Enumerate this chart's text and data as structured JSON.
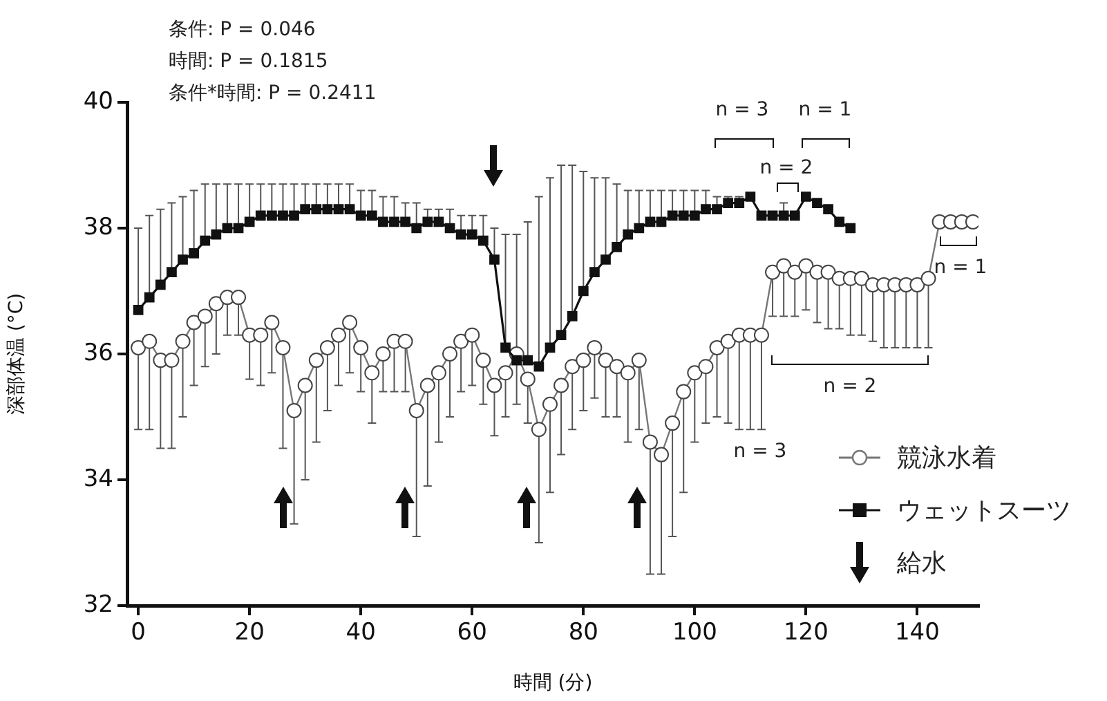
{
  "chart_data": {
    "type": "line",
    "xlabel": "時間 (分)",
    "ylabel": "深部体温 (°C)",
    "x": [
      0,
      2,
      4,
      6,
      8,
      10,
      12,
      14,
      16,
      18,
      20,
      22,
      24,
      26,
      28,
      30,
      32,
      34,
      36,
      38,
      40,
      42,
      44,
      46,
      48,
      50,
      52,
      54,
      56,
      58,
      60,
      62,
      64,
      66,
      68,
      70,
      72,
      74,
      76,
      78,
      80,
      82,
      84,
      86,
      88,
      90,
      92,
      94,
      96,
      98,
      100,
      102,
      104,
      106,
      108,
      110,
      112,
      114,
      116,
      118,
      120,
      122,
      124,
      126,
      128,
      130,
      132,
      134,
      136,
      138,
      140,
      142,
      144,
      146,
      148,
      150
    ],
    "xlim": [
      -2,
      151
    ],
    "xticks": [
      0,
      20,
      40,
      60,
      80,
      100,
      120,
      140
    ],
    "ylim": [
      32,
      40
    ],
    "yticks": [
      32,
      34,
      36,
      38,
      40
    ],
    "grid": false,
    "legend": "bottom right",
    "series": [
      {
        "name": "競泳水着",
        "color": "#777777",
        "marker": "circle",
        "values": [
          36.1,
          36.2,
          35.9,
          35.9,
          36.2,
          36.5,
          36.6,
          36.8,
          36.9,
          36.9,
          36.3,
          36.3,
          36.5,
          36.1,
          35.1,
          35.5,
          35.9,
          36.1,
          36.3,
          36.5,
          36.1,
          35.7,
          36.0,
          36.2,
          36.2,
          35.1,
          35.5,
          35.7,
          36.0,
          36.2,
          36.3,
          35.9,
          35.5,
          35.7,
          36.0,
          35.6,
          34.8,
          35.2,
          35.5,
          35.8,
          35.9,
          36.1,
          35.9,
          35.8,
          35.7,
          35.9,
          34.6,
          34.4,
          34.9,
          35.4,
          35.7,
          35.8,
          36.1,
          36.2,
          36.3,
          36.3,
          36.3,
          37.3,
          37.4,
          37.3,
          37.4,
          37.3,
          37.3,
          37.2,
          37.2,
          37.2,
          37.1,
          37.1,
          37.1,
          37.1,
          37.1,
          37.2,
          38.1,
          38.1,
          38.1,
          38.1
        ],
        "errors": [
          [
            34.8,
            36.1
          ],
          [
            34.8,
            36.2
          ],
          [
            34.5,
            35.9
          ],
          [
            34.5,
            35.9
          ],
          [
            35.0,
            36.2
          ],
          [
            35.5,
            36.5
          ],
          [
            35.8,
            36.6
          ],
          [
            36.0,
            36.8
          ],
          [
            36.3,
            36.9
          ],
          [
            36.3,
            36.9
          ],
          [
            35.6,
            36.3
          ],
          [
            35.5,
            36.3
          ],
          [
            35.7,
            36.5
          ],
          [
            34.5,
            36.1
          ],
          [
            33.3,
            35.1
          ],
          [
            34.0,
            35.5
          ],
          [
            34.6,
            35.9
          ],
          [
            35.1,
            36.1
          ],
          [
            35.5,
            36.3
          ],
          [
            35.7,
            36.5
          ],
          [
            35.4,
            36.1
          ],
          [
            34.9,
            35.7
          ],
          [
            35.4,
            36.0
          ],
          [
            35.4,
            36.2
          ],
          [
            35.4,
            36.2
          ],
          [
            33.1,
            35.1
          ],
          [
            33.9,
            35.5
          ],
          [
            34.6,
            35.7
          ],
          [
            35.0,
            36.0
          ],
          [
            35.4,
            36.2
          ],
          [
            35.5,
            36.3
          ],
          [
            35.2,
            35.9
          ],
          [
            34.7,
            35.5
          ],
          [
            35.0,
            35.7
          ],
          [
            35.2,
            36.0
          ],
          [
            34.9,
            35.6
          ],
          [
            33.0,
            34.8
          ],
          [
            33.8,
            35.2
          ],
          [
            34.4,
            35.5
          ],
          [
            34.8,
            35.8
          ],
          [
            35.1,
            35.9
          ],
          [
            35.3,
            36.1
          ],
          [
            35.0,
            35.9
          ],
          [
            35.0,
            35.8
          ],
          [
            34.6,
            35.7
          ],
          [
            34.8,
            35.9
          ],
          [
            32.5,
            34.6
          ],
          [
            32.5,
            34.4
          ],
          [
            33.1,
            34.9
          ],
          [
            33.8,
            35.4
          ],
          [
            34.6,
            35.7
          ],
          [
            34.9,
            35.8
          ],
          [
            35.0,
            36.1
          ],
          [
            34.9,
            36.2
          ],
          [
            34.8,
            36.3
          ],
          [
            34.8,
            36.3
          ],
          [
            34.8,
            36.3
          ],
          [
            36.6,
            37.3
          ],
          [
            36.6,
            37.4
          ],
          [
            36.6,
            37.3
          ],
          [
            36.7,
            37.4
          ],
          [
            36.5,
            37.3
          ],
          [
            36.4,
            37.3
          ],
          [
            36.4,
            37.2
          ],
          [
            36.3,
            37.2
          ],
          [
            36.3,
            37.2
          ],
          [
            36.2,
            37.1
          ],
          [
            36.1,
            37.1
          ],
          [
            36.1,
            37.1
          ],
          [
            36.1,
            37.1
          ],
          [
            36.1,
            37.1
          ],
          [
            36.1,
            37.2
          ],
          null,
          null,
          null,
          null
        ]
      },
      {
        "name": "ウェットスーツ",
        "color": "#111111",
        "marker": "square",
        "values": [
          36.7,
          36.9,
          37.1,
          37.3,
          37.5,
          37.6,
          37.8,
          37.9,
          38.0,
          38.0,
          38.1,
          38.2,
          38.2,
          38.2,
          38.2,
          38.3,
          38.3,
          38.3,
          38.3,
          38.3,
          38.2,
          38.2,
          38.1,
          38.1,
          38.1,
          38.0,
          38.1,
          38.1,
          38.0,
          37.9,
          37.9,
          37.8,
          37.5,
          36.1,
          35.9,
          35.9,
          35.8,
          36.1,
          36.3,
          36.6,
          37.0,
          37.3,
          37.5,
          37.7,
          37.9,
          38.0,
          38.1,
          38.1,
          38.2,
          38.2,
          38.2,
          38.3,
          38.3,
          38.4,
          38.4,
          38.5,
          38.2,
          38.2,
          38.2,
          38.2,
          38.5,
          38.4,
          38.3,
          38.1,
          38.0,
          null,
          null,
          null,
          null,
          null,
          null,
          null,
          null,
          null,
          null,
          null
        ],
        "errors": [
          [
            36.7,
            38.0
          ],
          [
            36.9,
            38.2
          ],
          [
            37.1,
            38.3
          ],
          [
            37.3,
            38.4
          ],
          [
            37.5,
            38.5
          ],
          [
            37.6,
            38.6
          ],
          [
            37.8,
            38.7
          ],
          [
            37.9,
            38.7
          ],
          [
            38.0,
            38.7
          ],
          [
            38.0,
            38.7
          ],
          [
            38.1,
            38.7
          ],
          [
            38.2,
            38.7
          ],
          [
            38.2,
            38.7
          ],
          [
            38.2,
            38.7
          ],
          [
            38.2,
            38.7
          ],
          [
            38.3,
            38.7
          ],
          [
            38.3,
            38.7
          ],
          [
            38.3,
            38.7
          ],
          [
            38.3,
            38.7
          ],
          [
            38.3,
            38.7
          ],
          [
            38.2,
            38.6
          ],
          [
            38.2,
            38.6
          ],
          [
            38.1,
            38.5
          ],
          [
            38.1,
            38.5
          ],
          [
            38.1,
            38.4
          ],
          [
            38.0,
            38.4
          ],
          [
            38.1,
            38.3
          ],
          [
            38.1,
            38.3
          ],
          [
            38.0,
            38.3
          ],
          [
            37.9,
            38.2
          ],
          [
            37.9,
            38.2
          ],
          [
            37.8,
            38.2
          ],
          [
            37.5,
            38.0
          ],
          [
            36.1,
            37.9
          ],
          [
            35.9,
            37.9
          ],
          [
            35.9,
            38.1
          ],
          [
            35.8,
            38.5
          ],
          [
            36.1,
            38.8
          ],
          [
            36.3,
            39.0
          ],
          [
            36.6,
            39.0
          ],
          [
            37.0,
            38.9
          ],
          [
            37.3,
            38.8
          ],
          [
            37.5,
            38.8
          ],
          [
            37.7,
            38.7
          ],
          [
            37.9,
            38.6
          ],
          [
            38.0,
            38.6
          ],
          [
            38.1,
            38.6
          ],
          [
            38.1,
            38.6
          ],
          [
            38.2,
            38.6
          ],
          [
            38.2,
            38.6
          ],
          [
            38.2,
            38.6
          ],
          [
            38.3,
            38.6
          ],
          [
            38.3,
            38.5
          ],
          [
            38.4,
            38.5
          ],
          [
            38.4,
            38.5
          ],
          null,
          null,
          null,
          [
            38.2,
            38.4
          ],
          null,
          null,
          null,
          null,
          null,
          null,
          null,
          null,
          null,
          null,
          null,
          null,
          null,
          null,
          null,
          null,
          null
        ]
      }
    ],
    "annotations": [
      "条件: P = 0.046",
      "時間: P = 0.1815",
      "条件*時間: P = 0.2411",
      "給水",
      "n = 3",
      "n = 1",
      "n = 2",
      "n = 1",
      "n = 2",
      "n = 3"
    ]
  }
}
